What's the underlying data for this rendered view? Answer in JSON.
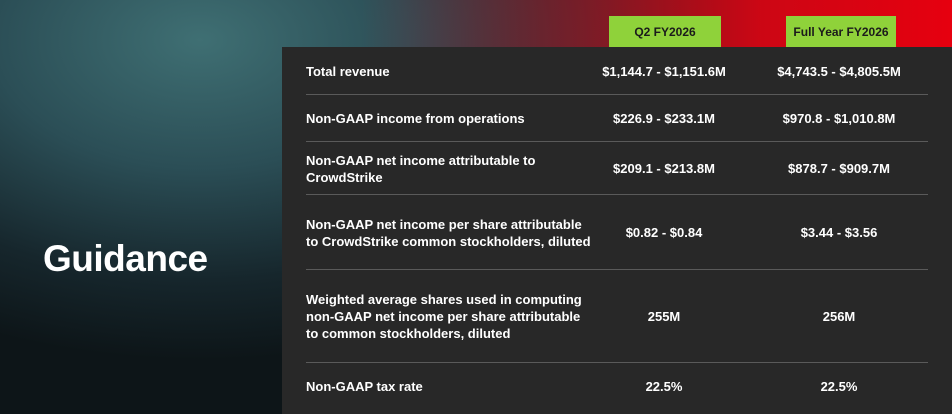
{
  "slide": {
    "title": "Guidance"
  },
  "columns": {
    "q2": "Q2 FY2026",
    "fy": "Full Year FY2026"
  },
  "rows": [
    {
      "label": "Total revenue",
      "q2": "$1,144.7 - $1,151.6M",
      "fy": "$4,743.5 - $4,805.5M"
    },
    {
      "label": "Non-GAAP income from operations",
      "q2": "$226.9 - $233.1M",
      "fy": "$970.8 - $1,010.8M"
    },
    {
      "label": "Non-GAAP net income attributable to CrowdStrike",
      "q2": "$209.1 - $213.8M",
      "fy": "$878.7 - $909.7M"
    },
    {
      "label": "Non-GAAP net income per share attributable to CrowdStrike common stockholders, diluted",
      "q2": "$0.82 - $0.84",
      "fy": "$3.44 - $3.56"
    },
    {
      "label": "Weighted average shares used in computing non-GAAP net income per share attributable to common stockholders, diluted",
      "q2": "255M",
      "fy": "256M"
    },
    {
      "label": "Non-GAAP tax rate",
      "q2": "22.5%",
      "fy": "22.5%"
    }
  ]
}
